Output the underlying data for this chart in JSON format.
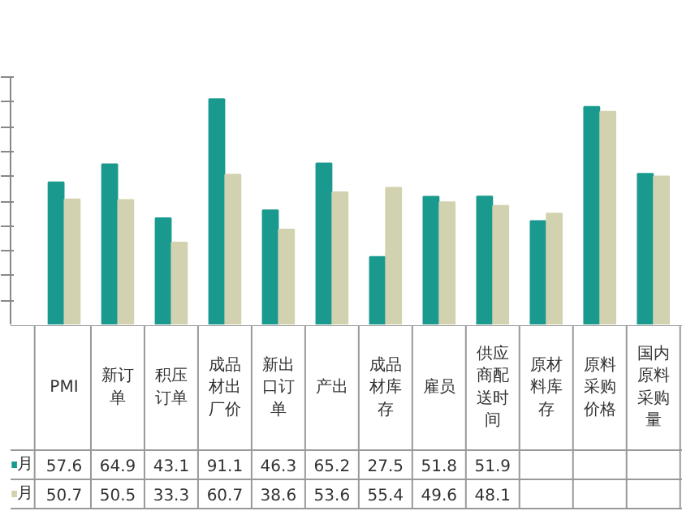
{
  "chart_data": {
    "type": "bar",
    "categories": [
      "PMI",
      "新订单",
      "积压订单",
      "成品材出厂价",
      "新出口订单",
      "产出",
      "成品材库存",
      "雇员",
      "供应商配送时间",
      "原材料库存",
      "原料采购价格",
      "国内原料采购量"
    ],
    "series": [
      {
        "name": "月",
        "color": "#1a9a8f",
        "values": [
          57.6,
          64.9,
          43.1,
          91.1,
          46.3,
          65.2,
          27.5,
          51.8,
          51.9,
          42,
          88,
          61
        ],
        "value_labels": [
          "57.6",
          "64.9",
          "43.1",
          "91.1",
          "46.3",
          "65.2",
          "27.5",
          "51.8",
          "51.9",
          null,
          null,
          null
        ]
      },
      {
        "name": "月",
        "color": "#d2d2b0",
        "values": [
          50.7,
          50.5,
          33.3,
          60.7,
          38.6,
          53.6,
          55.4,
          49.6,
          48.1,
          45,
          86,
          60
        ],
        "value_labels": [
          "50.7",
          "50.5",
          "33.3",
          "60.7",
          "38.6",
          "53.6",
          "55.4",
          "49.6",
          "48.1",
          null,
          null,
          null
        ]
      }
    ],
    "ylim": [
      0,
      100
    ],
    "yticks": [
      0,
      10,
      20,
      30,
      40,
      50,
      60,
      70,
      80,
      90,
      100
    ],
    "tick_labels": false,
    "grid": false
  }
}
